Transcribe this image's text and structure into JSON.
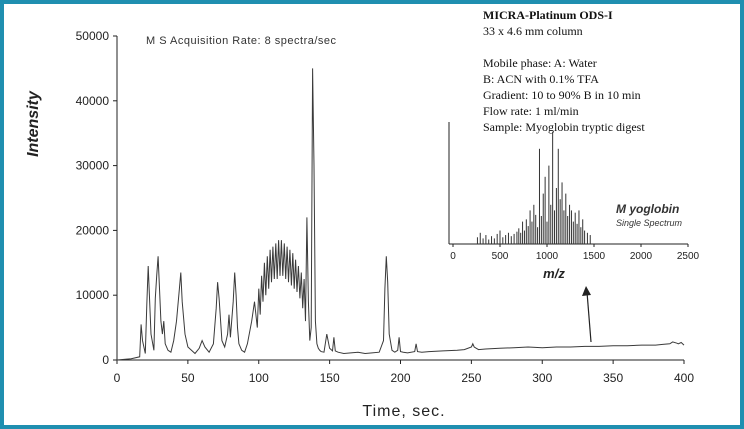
{
  "chart_data": [
    {
      "type": "line",
      "xlabel": "Time, sec.",
      "ylabel": "Intensity",
      "xlim": [
        0,
        400
      ],
      "ylim": [
        0,
        50000
      ],
      "xticks": [
        "0",
        "50",
        "100",
        "150",
        "200",
        "250",
        "300",
        "350",
        "400"
      ],
      "yticks": [
        "0",
        "10000",
        "20000",
        "30000",
        "40000",
        "50000"
      ],
      "annotation": "M S Acquisition Rate: 8 spectra/sec",
      "series": [
        {
          "x": [
            0,
            10,
            16,
            17,
            18,
            20,
            21,
            22,
            24,
            26,
            27,
            28,
            29,
            30,
            31,
            32,
            33,
            34,
            36,
            38,
            40,
            42,
            44,
            45,
            46,
            48,
            50,
            55,
            58,
            60,
            62,
            65,
            68,
            70,
            71,
            72,
            74,
            76,
            78,
            79,
            80,
            82,
            83,
            84,
            85,
            86,
            88,
            90,
            92,
            95,
            97,
            99,
            100,
            101,
            102,
            103,
            104,
            105,
            106,
            107,
            108,
            109,
            110,
            111,
            112,
            113,
            114,
            115,
            116,
            117,
            118,
            119,
            120,
            121,
            122,
            123,
            124,
            125,
            126,
            127,
            128,
            129,
            130,
            131,
            132,
            133,
            134,
            135,
            136,
            137,
            138,
            139,
            140,
            141,
            142,
            143,
            144,
            146,
            148,
            150,
            152,
            153,
            154,
            156,
            160,
            165,
            170,
            175,
            180,
            185,
            188,
            189,
            190,
            191,
            192,
            194,
            196,
            198,
            199,
            200,
            202,
            205,
            210,
            211,
            212,
            215,
            220,
            230,
            240,
            245,
            250,
            251,
            252,
            255,
            260,
            270,
            280,
            290,
            300,
            310,
            320,
            330,
            340,
            350,
            360,
            370,
            380,
            385,
            390,
            392,
            395,
            396,
            398,
            400
          ],
          "y": [
            0,
            200,
            500,
            5500,
            3000,
            1000,
            8500,
            14500,
            4000,
            1500,
            9500,
            13000,
            16000,
            11000,
            6000,
            4000,
            6000,
            2500,
            1500,
            1200,
            3000,
            6000,
            11000,
            13500,
            9000,
            4000,
            2000,
            1000,
            1800,
            3000,
            2000,
            1200,
            2500,
            8000,
            12000,
            9500,
            3000,
            2000,
            4000,
            7000,
            3500,
            9000,
            13500,
            10000,
            5000,
            2500,
            1500,
            1200,
            2500,
            6000,
            9000,
            5000,
            11000,
            7000,
            13000,
            9000,
            15000,
            10000,
            16000,
            11000,
            17000,
            12000,
            17500,
            12500,
            18000,
            12500,
            18500,
            13000,
            18500,
            13000,
            18000,
            12500,
            17500,
            12000,
            17000,
            11500,
            16500,
            11000,
            15500,
            10500,
            14500,
            9500,
            13500,
            8000,
            12500,
            6000,
            22000,
            9000,
            3000,
            5000,
            45000,
            30000,
            6000,
            2500,
            1800,
            1500,
            1300,
            1200,
            4000,
            1800,
            1400,
            3500,
            1400,
            1200,
            1000,
            1100,
            1200,
            1000,
            1100,
            1200,
            3000,
            11000,
            16000,
            12000,
            4000,
            1500,
            1200,
            1500,
            3500,
            1300,
            1200,
            1100,
            1300,
            2500,
            1300,
            1200,
            1300,
            1400,
            1500,
            1600,
            2000,
            2500,
            2000,
            1600,
            1700,
            1800,
            1900,
            2000,
            1900,
            2000,
            2000,
            2100,
            2100,
            2200,
            2200,
            2300,
            2300,
            2400,
            2500,
            2800,
            2600,
            2500,
            2700,
            2300
          ]
        }
      ]
    },
    {
      "type": "bar",
      "title": "M yoglobin",
      "subtitle": "Single Spectrum",
      "xlabel": "m/z",
      "xlim": [
        0,
        2500
      ],
      "xticks": [
        "0",
        "500",
        "1000",
        "1500",
        "2000",
        "2500"
      ],
      "x": [
        260,
        290,
        320,
        350,
        380,
        410,
        440,
        470,
        500,
        530,
        560,
        590,
        620,
        650,
        680,
        700,
        720,
        740,
        760,
        780,
        800,
        820,
        840,
        860,
        880,
        900,
        920,
        940,
        960,
        980,
        1000,
        1020,
        1040,
        1060,
        1080,
        1100,
        1120,
        1140,
        1160,
        1180,
        1200,
        1220,
        1240,
        1260,
        1280,
        1300,
        1320,
        1340,
        1360,
        1380,
        1400,
        1430,
        1460
      ],
      "values": [
        0.06,
        0.1,
        0.05,
        0.08,
        0.04,
        0.07,
        0.05,
        0.09,
        0.12,
        0.06,
        0.08,
        0.1,
        0.07,
        0.09,
        0.11,
        0.14,
        0.1,
        0.2,
        0.12,
        0.22,
        0.16,
        0.3,
        0.2,
        0.35,
        0.26,
        0.15,
        0.85,
        0.25,
        0.45,
        0.6,
        0.2,
        0.7,
        0.35,
        1.0,
        0.3,
        0.5,
        0.85,
        0.4,
        0.55,
        0.3,
        0.45,
        0.25,
        0.35,
        0.3,
        0.2,
        0.28,
        0.18,
        0.3,
        0.15,
        0.22,
        0.12,
        0.1,
        0.08
      ]
    }
  ],
  "info": {
    "title": "MICRA-Platinum ODS-I",
    "lines": [
      "33 x 4.6 mm column",
      "Mobile phase: A: Water",
      "B: ACN with 0.1% TFA",
      "Gradient: 10 to 90% B in 10 min",
      "Flow rate: 1 ml/min",
      "Sample: Myoglobin tryptic digest"
    ]
  },
  "colors": {
    "frame": "#1f8fb0",
    "trace": "#3a3a3a",
    "axis": "#222222"
  }
}
